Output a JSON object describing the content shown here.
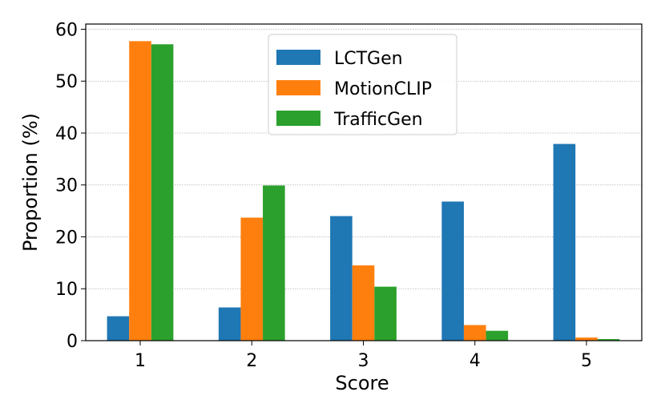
{
  "chart_data": {
    "type": "bar",
    "categories": [
      "1",
      "2",
      "3",
      "4",
      "5"
    ],
    "series": [
      {
        "name": "LCTGen",
        "values": [
          4.7,
          6.4,
          24.0,
          26.8,
          37.9
        ],
        "color": "#1f77b4"
      },
      {
        "name": "MotionCLIP",
        "values": [
          57.7,
          23.7,
          14.5,
          3.0,
          0.6
        ],
        "color": "#ff7f0e"
      },
      {
        "name": "TrafficGen",
        "values": [
          57.1,
          29.9,
          10.4,
          1.9,
          0.3
        ],
        "color": "#2ca02c"
      }
    ],
    "xlabel": "Score",
    "ylabel": "Proportion (%)",
    "ylim": [
      0,
      61
    ],
    "yticks": [
      "0",
      "10",
      "20",
      "30",
      "40",
      "50",
      "60"
    ],
    "grid": "horizontal-dotted",
    "legend_position": "top-center"
  }
}
